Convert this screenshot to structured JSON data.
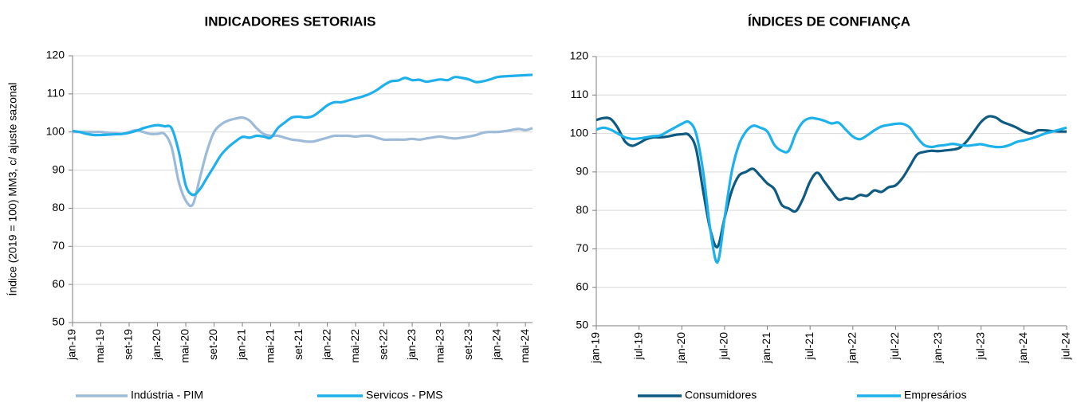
{
  "chart_data": [
    {
      "type": "line",
      "title": "INDICADORES SETORIAIS",
      "ylabel": "Índice (2019 = 100) MM3, c/ ajuste sazonal",
      "categories": [
        "jan-19",
        null,
        null,
        null,
        "mai-19",
        null,
        null,
        null,
        "set-19",
        null,
        null,
        null,
        "jan-20",
        null,
        null,
        null,
        "mai-20",
        null,
        null,
        null,
        "set-20",
        null,
        null,
        null,
        "jan-21",
        null,
        null,
        null,
        "mai-21",
        null,
        null,
        null,
        "set-21",
        null,
        null,
        null,
        "jan-22",
        null,
        null,
        null,
        "mai-22",
        null,
        null,
        null,
        "set-22",
        null,
        null,
        null,
        "jan-23",
        null,
        null,
        null,
        "mai-23",
        null,
        null,
        null,
        "set-23",
        null,
        null,
        null,
        "jan-24",
        null,
        null,
        null,
        "mai-24",
        null
      ],
      "series": [
        {
          "name": "Indústria - PIM",
          "color": "#9dbbd8",
          "values": [
            100,
            100,
            100,
            100,
            100,
            99.8,
            99.7,
            99.5,
            100,
            100.5,
            100,
            99.5,
            99.5,
            99.5,
            96,
            87,
            82,
            81,
            88,
            95,
            100,
            102,
            103,
            103.5,
            103.8,
            103,
            101,
            99.5,
            99,
            99,
            98.5,
            98,
            97.8,
            97.5,
            97.5,
            98,
            98.5,
            99,
            99,
            99,
            98.8,
            99,
            99,
            98.5,
            98,
            98,
            98,
            98,
            98.2,
            98,
            98.3,
            98.6,
            98.8,
            98.5,
            98.3,
            98.5,
            98.8,
            99.2,
            99.8,
            100,
            100,
            100.2,
            100.5,
            100.8,
            100.5,
            101
          ]
        },
        {
          "name": "Servicos - PMS",
          "color": "#1fb0ec",
          "values": [
            100.3,
            100,
            99.5,
            99.2,
            99.2,
            99.3,
            99.4,
            99.5,
            99.8,
            100.3,
            101,
            101.5,
            101.8,
            101.5,
            101,
            95,
            86,
            83.5,
            85,
            88,
            91,
            94,
            96,
            97.5,
            98.7,
            98.5,
            99,
            98.8,
            98.5,
            101,
            102.5,
            103.8,
            104,
            103.8,
            104.2,
            105.5,
            107,
            107.8,
            107.8,
            108.3,
            108.8,
            109.3,
            110,
            111,
            112.3,
            113.3,
            113.5,
            114.2,
            113.6,
            113.7,
            113.2,
            113.5,
            113.8,
            113.6,
            114.4,
            114.2,
            113.8,
            113.1,
            113.3,
            113.8,
            114.4,
            114.6,
            114.7,
            114.8,
            114.9,
            115
          ]
        }
      ],
      "ylim": [
        50,
        120
      ],
      "yticks": [
        50,
        60,
        70,
        80,
        90,
        100,
        110,
        120
      ],
      "grid": true
    },
    {
      "type": "line",
      "title": "ÍNDICES DE CONFIANÇA",
      "categories": [
        "jan-19",
        null,
        null,
        null,
        null,
        null,
        "jul-19",
        null,
        null,
        null,
        null,
        null,
        "jan-20",
        null,
        null,
        null,
        null,
        null,
        "jul-20",
        null,
        null,
        null,
        null,
        null,
        "jan-21",
        null,
        null,
        null,
        null,
        null,
        "jul-21",
        null,
        null,
        null,
        null,
        null,
        "jan-22",
        null,
        null,
        null,
        null,
        null,
        "jul-22",
        null,
        null,
        null,
        null,
        null,
        "jan-23",
        null,
        null,
        null,
        null,
        null,
        "jul-23",
        null,
        null,
        null,
        null,
        null,
        "jan-24",
        null,
        null,
        null,
        null,
        null,
        "jul-24"
      ],
      "series": [
        {
          "name": "Consumidores",
          "color": "#0e5a80",
          "values": [
            103.5,
            104,
            103.8,
            101.5,
            98,
            96.8,
            97.5,
            98.5,
            99,
            99,
            99.2,
            99.6,
            99.8,
            99.6,
            96,
            85,
            75,
            70.5,
            78,
            85,
            89,
            90,
            90.8,
            89,
            87,
            85.5,
            81.5,
            80.5,
            79.8,
            83,
            87.5,
            89.8,
            87.5,
            85,
            82.8,
            83.2,
            83,
            84,
            83.8,
            85.2,
            84.8,
            86,
            86.5,
            88.5,
            91.5,
            94.5,
            95.2,
            95.5,
            95.4,
            95.6,
            95.8,
            96.3,
            98,
            100.5,
            103,
            104.4,
            104.2,
            103,
            102.3,
            101.5,
            100.5,
            100,
            100.8,
            100.8,
            100.6,
            100.5,
            100.5
          ]
        },
        {
          "name": "Empresários",
          "color": "#1db1ec",
          "values": [
            101,
            101.5,
            101,
            100,
            99,
            98.6,
            98.7,
            99,
            99.3,
            99.5,
            100.5,
            101.5,
            102.5,
            103,
            100,
            90,
            75,
            66.5,
            78,
            90,
            97,
            100.5,
            102,
            101.5,
            100.5,
            97,
            95.5,
            95.5,
            100,
            103,
            104,
            103.8,
            103.3,
            102.6,
            102.8,
            101,
            99.2,
            98.5,
            99.5,
            100.8,
            101.8,
            102.2,
            102.5,
            102.5,
            101.5,
            99,
            97,
            96.5,
            96.8,
            97,
            97.3,
            97,
            96.8,
            97,
            97.2,
            96.8,
            96.5,
            96.5,
            97,
            97.8,
            98.2,
            98.7,
            99.3,
            100,
            100.5,
            101,
            101.5
          ]
        }
      ],
      "ylim": [
        50,
        120
      ],
      "yticks": [
        50,
        60,
        70,
        80,
        90,
        100,
        110,
        120
      ],
      "grid": true
    }
  ]
}
